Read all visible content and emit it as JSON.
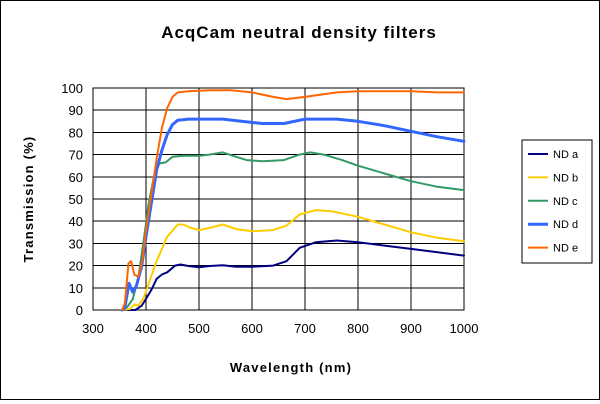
{
  "chart_data": {
    "type": "line",
    "title": "AcqCam neutral density filters",
    "xlabel": "Wavelength (nm)",
    "ylabel": "Transmission (%)",
    "xlim": [
      300,
      1000
    ],
    "ylim": [
      0,
      100
    ],
    "xticks": [
      300,
      400,
      500,
      600,
      700,
      800,
      900,
      1000
    ],
    "yticks": [
      0,
      10,
      20,
      30,
      40,
      50,
      60,
      70,
      80,
      90,
      100
    ],
    "grid": true,
    "legend_position": "right",
    "series": [
      {
        "name": "ND a",
        "color": "#000080",
        "points": [
          [
            355,
            0
          ],
          [
            380,
            0
          ],
          [
            392,
            2
          ],
          [
            400,
            5
          ],
          [
            410,
            9
          ],
          [
            420,
            14
          ],
          [
            430,
            16
          ],
          [
            440,
            17
          ],
          [
            455,
            20
          ],
          [
            465,
            20.5
          ],
          [
            480,
            19.8
          ],
          [
            500,
            19.3
          ],
          [
            520,
            19.8
          ],
          [
            545,
            20.2
          ],
          [
            570,
            19.5
          ],
          [
            600,
            19.5
          ],
          [
            640,
            20
          ],
          [
            665,
            22
          ],
          [
            690,
            28
          ],
          [
            720,
            30.5
          ],
          [
            760,
            31.3
          ],
          [
            800,
            30.5
          ],
          [
            850,
            29
          ],
          [
            900,
            27.5
          ],
          [
            950,
            26
          ],
          [
            1000,
            24.5
          ]
        ]
      },
      {
        "name": "ND b",
        "color": "#FFCC00",
        "points": [
          [
            355,
            0
          ],
          [
            370,
            0.5
          ],
          [
            378,
            2.5
          ],
          [
            385,
            2
          ],
          [
            395,
            5
          ],
          [
            405,
            12
          ],
          [
            420,
            22
          ],
          [
            440,
            33
          ],
          [
            460,
            38.5
          ],
          [
            470,
            38.5
          ],
          [
            485,
            37
          ],
          [
            500,
            36
          ],
          [
            520,
            37
          ],
          [
            545,
            38.5
          ],
          [
            570,
            36.5
          ],
          [
            600,
            35.5
          ],
          [
            640,
            36
          ],
          [
            665,
            38
          ],
          [
            690,
            43
          ],
          [
            720,
            45
          ],
          [
            750,
            44.5
          ],
          [
            800,
            42
          ],
          [
            850,
            38.5
          ],
          [
            900,
            35
          ],
          [
            950,
            32.5
          ],
          [
            1000,
            31
          ]
        ]
      },
      {
        "name": "ND c",
        "color": "#339966",
        "points": [
          [
            355,
            0
          ],
          [
            365,
            1.5
          ],
          [
            375,
            5
          ],
          [
            385,
            14
          ],
          [
            395,
            30
          ],
          [
            405,
            48
          ],
          [
            415,
            60
          ],
          [
            425,
            66
          ],
          [
            437,
            66.5
          ],
          [
            450,
            69
          ],
          [
            470,
            69.5
          ],
          [
            500,
            69.5
          ],
          [
            520,
            70
          ],
          [
            545,
            71
          ],
          [
            570,
            69
          ],
          [
            590,
            67.5
          ],
          [
            620,
            67
          ],
          [
            660,
            67.5
          ],
          [
            690,
            70
          ],
          [
            710,
            71
          ],
          [
            735,
            70
          ],
          [
            770,
            67.5
          ],
          [
            800,
            65
          ],
          [
            850,
            61.5
          ],
          [
            900,
            58
          ],
          [
            950,
            55.5
          ],
          [
            1000,
            54
          ]
        ]
      },
      {
        "name": "ND d",
        "color": "#3366FF",
        "points": [
          [
            355,
            0
          ],
          [
            360,
            1
          ],
          [
            368,
            12
          ],
          [
            375,
            8
          ],
          [
            382,
            11
          ],
          [
            392,
            20
          ],
          [
            400,
            33
          ],
          [
            410,
            48
          ],
          [
            420,
            63
          ],
          [
            430,
            72
          ],
          [
            440,
            79
          ],
          [
            450,
            83.5
          ],
          [
            460,
            85.5
          ],
          [
            480,
            86
          ],
          [
            520,
            86
          ],
          [
            545,
            86
          ],
          [
            580,
            85
          ],
          [
            620,
            84
          ],
          [
            660,
            84
          ],
          [
            700,
            86
          ],
          [
            760,
            86
          ],
          [
            800,
            85
          ],
          [
            850,
            83
          ],
          [
            900,
            80.5
          ],
          [
            950,
            78
          ],
          [
            1000,
            76
          ]
        ]
      },
      {
        "name": "ND e",
        "color": "#FF6600",
        "points": [
          [
            355,
            0
          ],
          [
            360,
            3
          ],
          [
            367,
            21
          ],
          [
            372,
            22
          ],
          [
            378,
            16
          ],
          [
            385,
            15
          ],
          [
            393,
            22
          ],
          [
            400,
            36
          ],
          [
            410,
            52
          ],
          [
            420,
            68
          ],
          [
            430,
            82
          ],
          [
            440,
            91
          ],
          [
            450,
            96
          ],
          [
            460,
            98
          ],
          [
            480,
            98.5
          ],
          [
            520,
            99
          ],
          [
            560,
            99
          ],
          [
            600,
            98
          ],
          [
            640,
            96
          ],
          [
            665,
            95
          ],
          [
            700,
            96
          ],
          [
            760,
            98
          ],
          [
            800,
            98.5
          ],
          [
            850,
            98.5
          ],
          [
            900,
            98.5
          ],
          [
            950,
            98
          ],
          [
            1000,
            98
          ]
        ]
      }
    ]
  }
}
